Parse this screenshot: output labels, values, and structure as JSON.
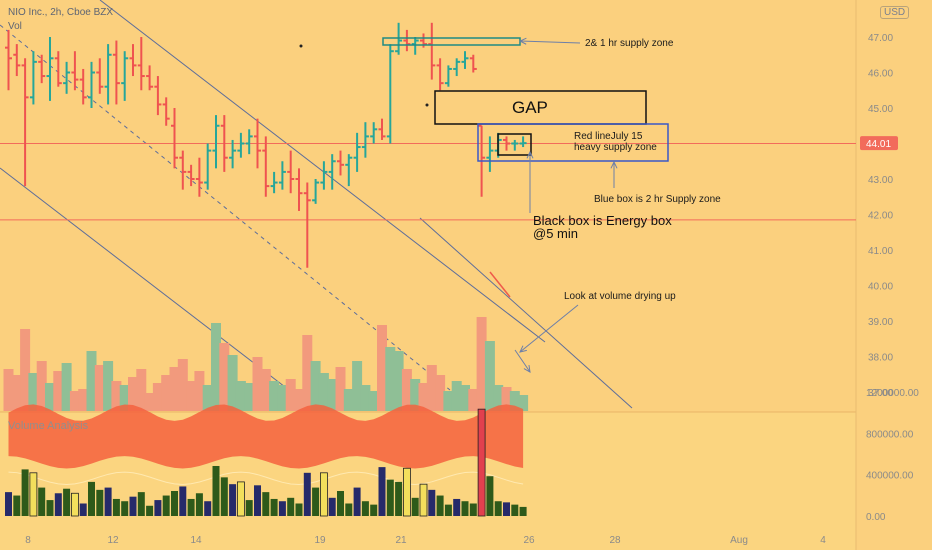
{
  "chart_data": {
    "type": "bar",
    "title": "NIO Inc., 2h, Cboe BZX",
    "volume_label": "Vol",
    "currency": "USD",
    "indicator_label": "Volume Analysis",
    "price_ticks": [
      "47.00",
      "46.00",
      "45.00",
      "44.00",
      "43.00",
      "42.00",
      "41.00",
      "40.00",
      "39.00",
      "38.00",
      "37.00"
    ],
    "last_price": "44.01",
    "volume_ticks": [
      "1200000.00",
      "800000.00",
      "400000.00",
      "0.00"
    ],
    "x_ticks": [
      "8",
      "12",
      "14",
      "19",
      "21",
      "26",
      "28",
      "Aug",
      "4"
    ],
    "colors": {
      "background": "#fbd07e",
      "up": "#26a69a",
      "down": "#ef5350",
      "vol_up": "#8fbf96",
      "vol_down": "#f29a7d",
      "red_line": "#f26b5b",
      "blue_box": "#3a59c7",
      "band": "#f5623e",
      "green_bar": "#2e5a1a",
      "navy_bar": "#262a6a",
      "yellow_bar": "#f3df5c"
    },
    "levels": {
      "red_line": 44.0,
      "lower_line": 41.85
    },
    "ohlc": [
      [
        46.7,
        47.2,
        45.5,
        46.4
      ],
      [
        46.5,
        46.8,
        45.9,
        46.2
      ],
      [
        46.2,
        46.4,
        42.8,
        45.3
      ],
      [
        45.3,
        46.6,
        45.1,
        46.3
      ],
      [
        46.3,
        46.5,
        45.7,
        45.9
      ],
      [
        45.9,
        47.0,
        45.2,
        46.4
      ],
      [
        46.4,
        46.6,
        45.6,
        45.7
      ],
      [
        45.7,
        46.3,
        45.4,
        46.0
      ],
      [
        46.0,
        46.6,
        45.5,
        45.8
      ],
      [
        45.8,
        46.1,
        45.1,
        45.3
      ],
      [
        45.3,
        46.3,
        45.0,
        46.0
      ],
      [
        46.0,
        46.4,
        45.4,
        45.6
      ],
      [
        45.6,
        46.8,
        45.1,
        46.5
      ],
      [
        46.5,
        46.9,
        45.1,
        45.7
      ],
      [
        45.7,
        46.6,
        45.2,
        46.4
      ],
      [
        46.4,
        46.8,
        45.9,
        46.2
      ],
      [
        46.2,
        47.0,
        45.5,
        45.9
      ],
      [
        45.9,
        46.2,
        45.5,
        45.6
      ],
      [
        45.6,
        45.9,
        44.8,
        45.1
      ],
      [
        45.1,
        45.3,
        44.5,
        44.7
      ],
      [
        44.5,
        45.0,
        43.3,
        43.6
      ],
      [
        43.6,
        43.8,
        42.7,
        43.2
      ],
      [
        43.2,
        43.4,
        42.8,
        43.0
      ],
      [
        43.0,
        43.6,
        42.5,
        42.9
      ],
      [
        42.9,
        44.0,
        42.7,
        43.8
      ],
      [
        43.8,
        44.8,
        43.3,
        44.5
      ],
      [
        44.5,
        44.8,
        43.2,
        43.6
      ],
      [
        43.6,
        44.1,
        43.3,
        43.8
      ],
      [
        43.8,
        44.3,
        43.6,
        44.0
      ],
      [
        44.0,
        44.4,
        43.7,
        44.2
      ],
      [
        44.2,
        44.7,
        43.3,
        43.8
      ],
      [
        43.8,
        44.2,
        42.5,
        42.8
      ],
      [
        42.8,
        43.2,
        42.6,
        42.9
      ],
      [
        42.9,
        43.5,
        42.7,
        43.2
      ],
      [
        43.2,
        43.8,
        42.6,
        43.0
      ],
      [
        43.0,
        43.3,
        42.1,
        42.6
      ],
      [
        42.6,
        42.9,
        40.5,
        42.4
      ],
      [
        42.4,
        43.0,
        42.3,
        42.9
      ],
      [
        42.9,
        43.5,
        42.7,
        43.2
      ],
      [
        43.2,
        43.7,
        42.7,
        43.5
      ],
      [
        43.5,
        43.8,
        43.1,
        43.4
      ],
      [
        43.4,
        43.7,
        42.8,
        43.6
      ],
      [
        43.6,
        44.3,
        43.2,
        43.9
      ],
      [
        43.9,
        44.6,
        43.6,
        44.2
      ],
      [
        44.2,
        44.6,
        44.0,
        44.4
      ],
      [
        44.4,
        44.7,
        44.1,
        44.2
      ],
      [
        44.2,
        46.8,
        44.0,
        46.6
      ],
      [
        46.6,
        47.4,
        46.5,
        46.9
      ],
      [
        46.9,
        47.2,
        46.6,
        46.8
      ],
      [
        46.8,
        47.0,
        46.5,
        46.9
      ],
      [
        46.9,
        47.1,
        46.7,
        46.8
      ],
      [
        46.8,
        47.4,
        45.8,
        46.2
      ],
      [
        46.2,
        46.4,
        45.5,
        45.7
      ],
      [
        45.7,
        46.2,
        45.6,
        46.1
      ],
      [
        46.1,
        46.4,
        45.9,
        46.3
      ],
      [
        46.3,
        46.6,
        46.1,
        46.4
      ],
      [
        46.4,
        46.5,
        46.0,
        46.1
      ],
      [
        44.5,
        44.5,
        42.5,
        43.6
      ],
      [
        43.6,
        44.2,
        43.2,
        43.8
      ],
      [
        43.8,
        44.3,
        43.6,
        44.1
      ],
      [
        44.1,
        44.2,
        43.8,
        44.0
      ],
      [
        44.0,
        44.1,
        43.8,
        44.0
      ],
      [
        44.0,
        44.2,
        43.9,
        44.01
      ]
    ],
    "volume": [
      420000,
      360000,
      820000,
      380000,
      500000,
      280000,
      400000,
      480000,
      200000,
      220000,
      600000,
      460000,
      500000,
      300000,
      260000,
      340000,
      420000,
      180000,
      280000,
      360000,
      440000,
      520000,
      300000,
      400000,
      260000,
      880000,
      680000,
      560000,
      300000,
      280000,
      540000,
      420000,
      300000,
      260000,
      320000,
      220000,
      760000,
      500000,
      380000,
      320000,
      440000,
      220000,
      500000,
      260000,
      200000,
      860000,
      640000,
      600000,
      420000,
      320000,
      280000,
      460000,
      360000,
      200000,
      300000,
      260000,
      220000,
      940000,
      700000,
      260000,
      240000,
      200000,
      160000
    ],
    "volume_ylim": [
      0,
      1200000
    ],
    "ylim": [
      36.5,
      48.2
    ],
    "grid": false,
    "legend": "top-left"
  },
  "annotations": {
    "supply_zone": "2& 1 hr supply zone",
    "gap": "GAP",
    "red_line_1": "Red lineJuly 15",
    "red_line_2": "heavy supply zone",
    "blue_box": "Blue box is 2 hr Supply zone",
    "energy_box_1": "Black box is Energy box",
    "energy_box_2": "@5 min",
    "volume_drying": "Look at volume drying up"
  }
}
